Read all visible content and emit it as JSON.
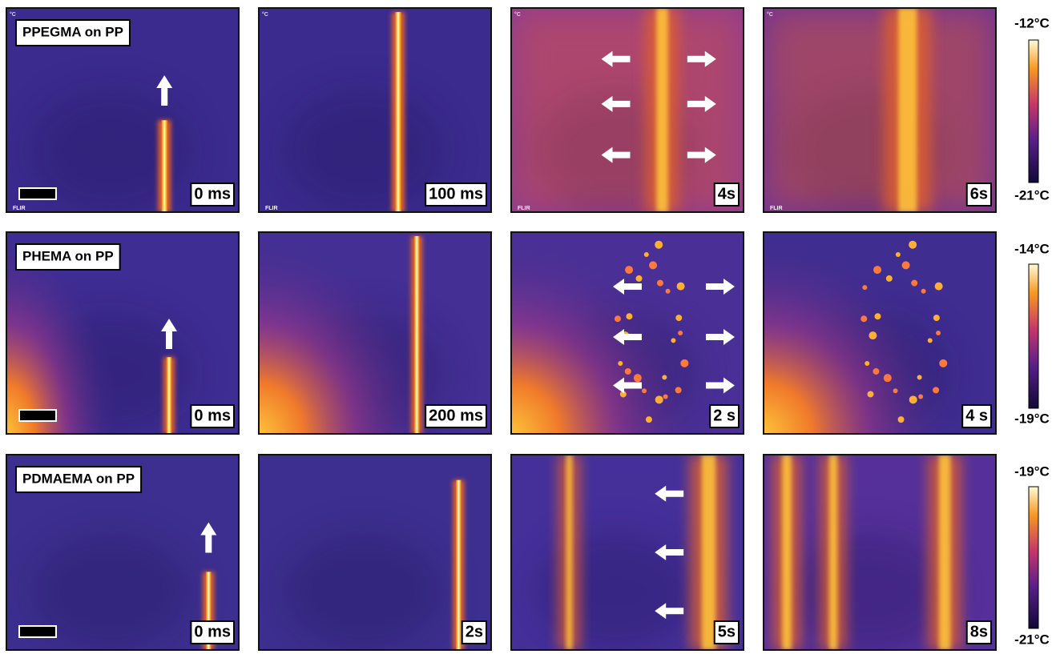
{
  "rows": [
    {
      "label": "PPEGMA on PP",
      "times": [
        "0 ms",
        "100 ms",
        "4s",
        "6s"
      ],
      "scale_max": "-12°C",
      "scale_min": "-21°C"
    },
    {
      "label": "PHEMA on PP",
      "times": [
        "0 ms",
        "200 ms",
        "2 s",
        "4 s"
      ],
      "scale_max": "-14°C",
      "scale_min": "-19°C"
    },
    {
      "label": "PDMAEMA on PP",
      "times": [
        "0 ms",
        "2s",
        "5s",
        "8s"
      ],
      "scale_max": "-19°C",
      "scale_min": "-21°C"
    }
  ],
  "badges": {
    "unit": "°C",
    "brand": "FLIR"
  }
}
